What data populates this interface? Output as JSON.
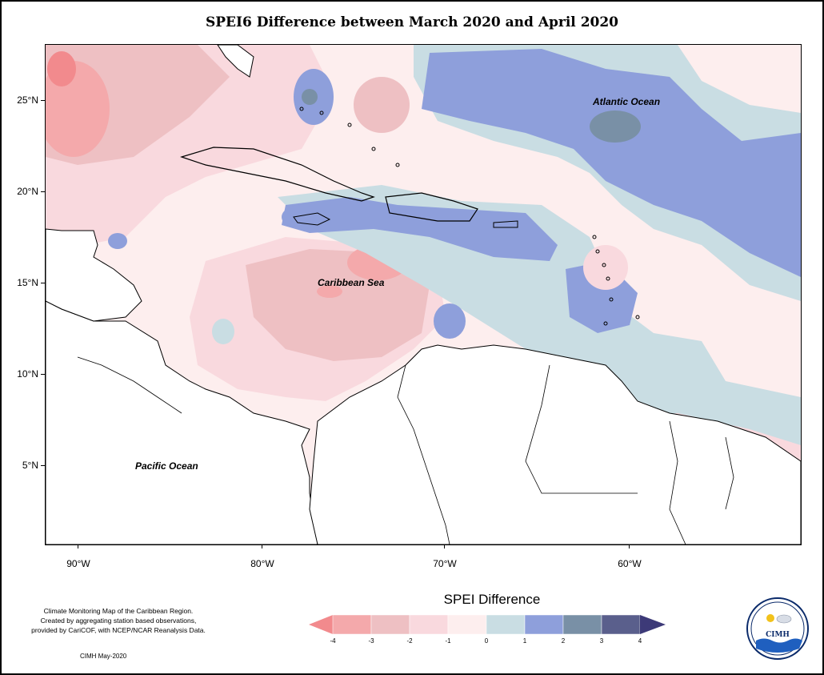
{
  "title": "SPEI6 Difference between March 2020 and April 2020",
  "map": {
    "ocean_labels": [
      "Atlantic Ocean",
      "Caribbean Sea",
      "Pacific Ocean"
    ],
    "lat_labels": [
      "25°N",
      "20°N",
      "15°N",
      "10°N",
      "5°N"
    ],
    "lon_labels": [
      "90°W",
      "80°W",
      "70°W",
      "60°W"
    ]
  },
  "footer": {
    "info_line1": "Climate Monitoring Map of the Caribbean Region.",
    "info_line2": "Created by aggregating station based observations,",
    "info_line3": "provided by CariCOF, with NCEP/NCAR Reanalysis Data.",
    "credit": "CIMH May-2020"
  },
  "legend": {
    "title": "SPEI Difference",
    "ticks": [
      "-4",
      "-3",
      "-2",
      "-1",
      "0",
      "1",
      "2",
      "3",
      "4"
    ],
    "colors": [
      "#f28a8d",
      "#f4a9ab",
      "#eec0c3",
      "#f9d9de",
      "#fdeeee",
      "#c9dde3",
      "#8e9fdb",
      "#7990a6",
      "#5a5f8c",
      "#3d3a78"
    ]
  },
  "logo": {
    "acronym": "CIMH"
  }
}
